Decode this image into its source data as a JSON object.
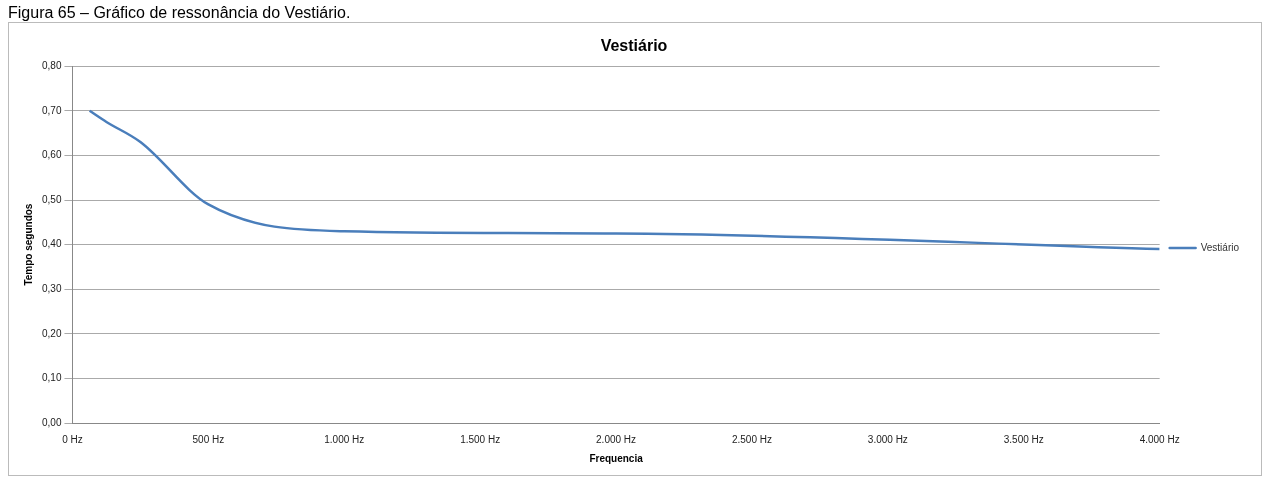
{
  "chart_data": {
    "type": "line",
    "title": "Vestiário",
    "xlabel": "Frequencia",
    "ylabel": "Tempo segundos",
    "annotations": [
      "Figura 65 – Gráfico de ressonância do Vestiário."
    ],
    "series": [
      {
        "name": "Vestiário",
        "color": "#4a7ebb",
        "x": [
          63,
          125,
          250,
          500,
          1000,
          2000,
          4000
        ],
        "values": [
          0.7,
          0.675,
          0.63,
          0.49,
          0.43,
          0.425,
          0.39
        ]
      }
    ],
    "xlim": [
      0,
      4000
    ],
    "xticks": [
      {
        "value": 0,
        "label": "0 Hz"
      },
      {
        "value": 500,
        "label": "500 Hz"
      },
      {
        "value": 1000,
        "label": "1.000 Hz"
      },
      {
        "value": 1500,
        "label": "1.500 Hz"
      },
      {
        "value": 2000,
        "label": "2.000 Hz"
      },
      {
        "value": 2500,
        "label": "2.500 Hz"
      },
      {
        "value": 3000,
        "label": "3.000 Hz"
      },
      {
        "value": 3500,
        "label": "3.500 Hz"
      },
      {
        "value": 4000,
        "label": "4.000 Hz"
      }
    ],
    "ylim": [
      0,
      0.8
    ],
    "yticks": [
      {
        "value": 0,
        "label": "0,00"
      },
      {
        "value": 0.1,
        "label": "0,10"
      },
      {
        "value": 0.2,
        "label": "0,20"
      },
      {
        "value": 0.3,
        "label": "0,30"
      },
      {
        "value": 0.4,
        "label": "0,40"
      },
      {
        "value": 0.5,
        "label": "0,50"
      },
      {
        "value": 0.6,
        "label": "0,60"
      },
      {
        "value": 0.7,
        "label": "0,70"
      },
      {
        "value": 0.8,
        "label": "0,80"
      }
    ],
    "grid": "y",
    "legend": "right",
    "marker": "none",
    "line_style": "solid"
  }
}
